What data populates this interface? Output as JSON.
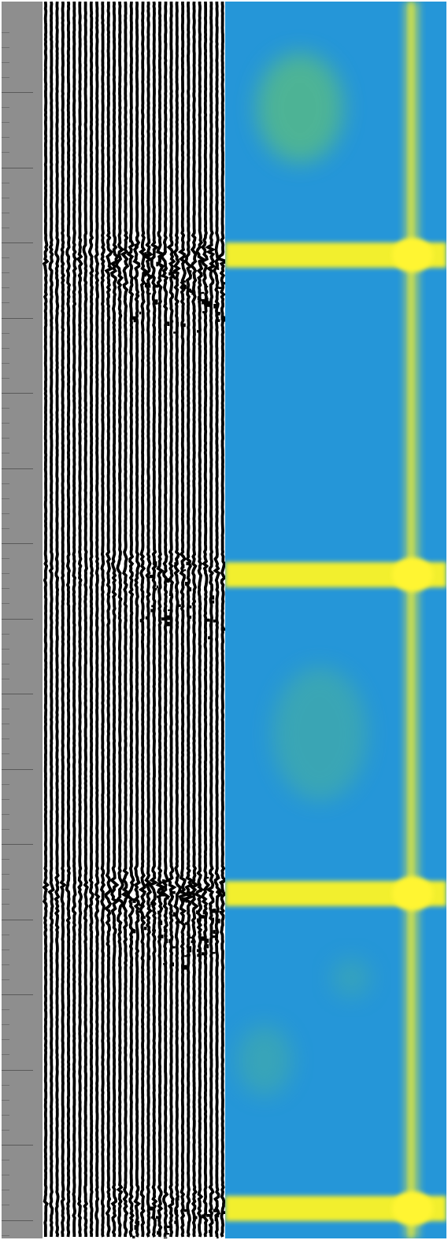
{
  "colors": {
    "scale_bg": "#8e8e8e",
    "trace_ink": "#000000",
    "trace_bg": "#ffffff",
    "heat_background": "#2596d8",
    "heat_mid": "#54b98a",
    "heat_high": "#f2ef2e",
    "heat_peak": "#fff533"
  },
  "scale": {
    "major_tick_count": 17,
    "minor_per_major": 5
  },
  "traces": {
    "count": 32
  },
  "heatmap": {
    "bright_bands": 4,
    "vertical_line": true
  }
}
